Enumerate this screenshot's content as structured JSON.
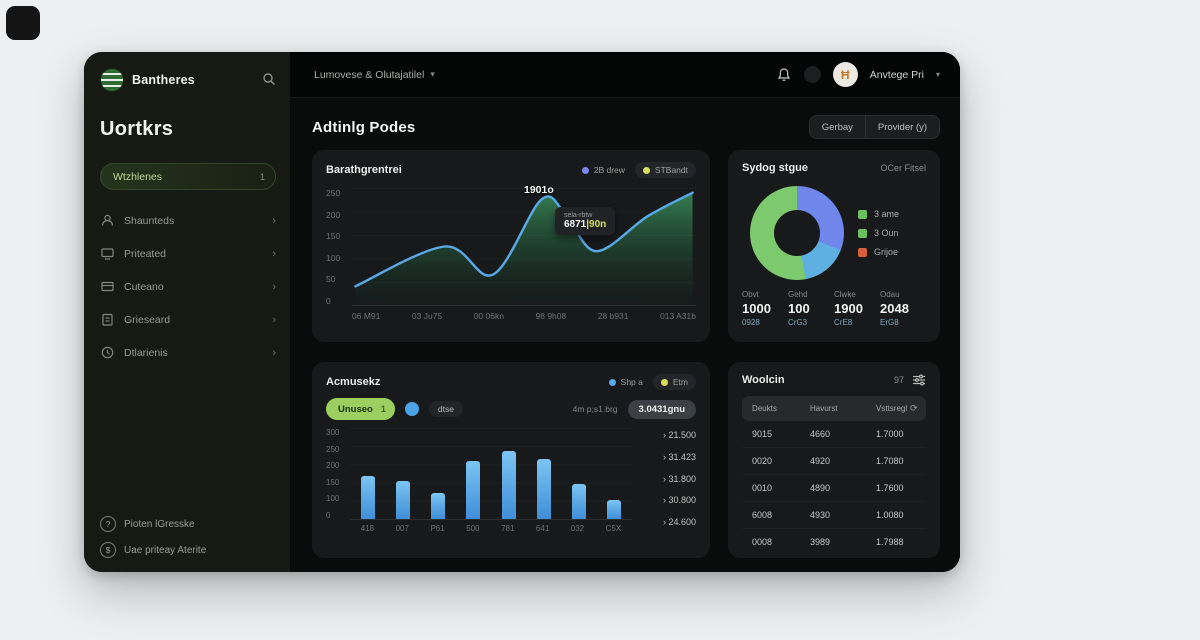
{
  "sidebar": {
    "logo_text": "Bantheres",
    "section_title": "Uortkrs",
    "active_item": {
      "label": "Wtzhlenes",
      "badge": "1"
    },
    "items": [
      {
        "label": "Shaunteds",
        "icon": "users-icon"
      },
      {
        "label": "Priteated",
        "icon": "monitor-icon"
      },
      {
        "label": "Cuteano",
        "icon": "card-icon"
      },
      {
        "label": "Grieseard",
        "icon": "clipboard-icon"
      },
      {
        "label": "Dtlarienis",
        "icon": "clock-icon"
      }
    ],
    "footer_items": [
      {
        "label": "Pioten lGresske",
        "icon": "help-circle-icon"
      },
      {
        "label": "Uae priteay Aterite",
        "icon": "dollar-circle-icon"
      }
    ]
  },
  "topbar": {
    "breadcrumb": "Lumovese & Olutajatilel",
    "user_name": "Anvtege Pri",
    "avatar_glyph": "Ħ"
  },
  "page": {
    "title": "Adtinlg Podes",
    "actions": [
      {
        "label": "Gerbay"
      },
      {
        "label": "Provider (y)"
      }
    ]
  },
  "line_card": {
    "title": "Barathgrentrei",
    "legend": [
      {
        "label": "2B drew",
        "color": "#7b87ee"
      },
      {
        "label": "STBandt",
        "color": "#d8de5f"
      }
    ],
    "peak_label": "1901o",
    "tooltip": {
      "title": "sela-rbtw",
      "value": "6871",
      "value_suffix": "|90n"
    },
    "y_ticks": [
      "250",
      "200",
      "150",
      "100",
      "50",
      "0"
    ],
    "x_ticks": [
      "06 M91",
      "03 Ju75",
      "00 06kn",
      "98 9h08",
      "28 b931",
      "013 A31b"
    ],
    "points": [
      [
        0.01,
        0.84
      ],
      [
        0.27,
        0.5
      ],
      [
        0.41,
        0.74
      ],
      [
        0.55,
        0.1
      ],
      [
        0.62,
        0.22
      ],
      [
        0.71,
        0.54
      ],
      [
        0.86,
        0.24
      ],
      [
        0.99,
        0.04
      ]
    ],
    "line_color": "#58a9e6",
    "fill_top": "#3f9b62",
    "fill_bottom": "#10331f"
  },
  "donut_card": {
    "title": "Sydog stgue",
    "link": "OCer Fitsel",
    "slices": [
      {
        "pct": 31,
        "color": "#6f86ea"
      },
      {
        "pct": 16,
        "color": "#5fb0e2"
      },
      {
        "pct": 53,
        "color": "#7dc96e"
      }
    ],
    "legend": [
      {
        "label": "3 ame",
        "color": "#6abf5e"
      },
      {
        "label": "3 Oun",
        "color": "#6abf5e"
      },
      {
        "label": "Grijoe",
        "color": "#d95f3b"
      }
    ],
    "stats": [
      {
        "label": "Obvt",
        "value": "1000",
        "sub": "0928"
      },
      {
        "label": "Gehd",
        "value": "100",
        "sub": "CrG3"
      },
      {
        "label": "Clwke",
        "value": "1900",
        "sub": "CrE8"
      },
      {
        "label": "Odau",
        "value": "2048",
        "sub": "ErG8"
      }
    ]
  },
  "bar_card": {
    "title": "Acmusekz",
    "legend": [
      {
        "label": "Shp a",
        "color": "#56a8e8"
      },
      {
        "label": "Etm",
        "color": "#d8de5f"
      }
    ],
    "filter_pill": {
      "label": "Unuseo",
      "badge": "1"
    },
    "toggle_label": "dtse",
    "range_label": "4m p;s1.brg",
    "range_value": "3.0431gnu",
    "y_ticks": [
      "300",
      "250",
      "200",
      "150",
      "100",
      "0"
    ],
    "x_ticks": [
      "418",
      "007",
      "P61",
      "500",
      "781",
      "641",
      "032",
      "C5X"
    ],
    "values": [
      47,
      42,
      29,
      64,
      75,
      66,
      38,
      21
    ],
    "amounts": [
      "› 21.500",
      "› 31.423",
      "› 31.800",
      "› 30.800",
      "› 24.600"
    ]
  },
  "table_card": {
    "title": "Woolcin",
    "count": "97",
    "columns": [
      "Deukts",
      "Havurst",
      "Vsttsregl"
    ],
    "rows": [
      [
        "9015",
        "4660",
        "1.7000"
      ],
      [
        "0020",
        "4920",
        "1.7080"
      ],
      [
        "0010",
        "4890",
        "1.7600"
      ],
      [
        "6008",
        "4930",
        "1.0080"
      ],
      [
        "0008",
        "3989",
        "1.7988"
      ]
    ]
  }
}
